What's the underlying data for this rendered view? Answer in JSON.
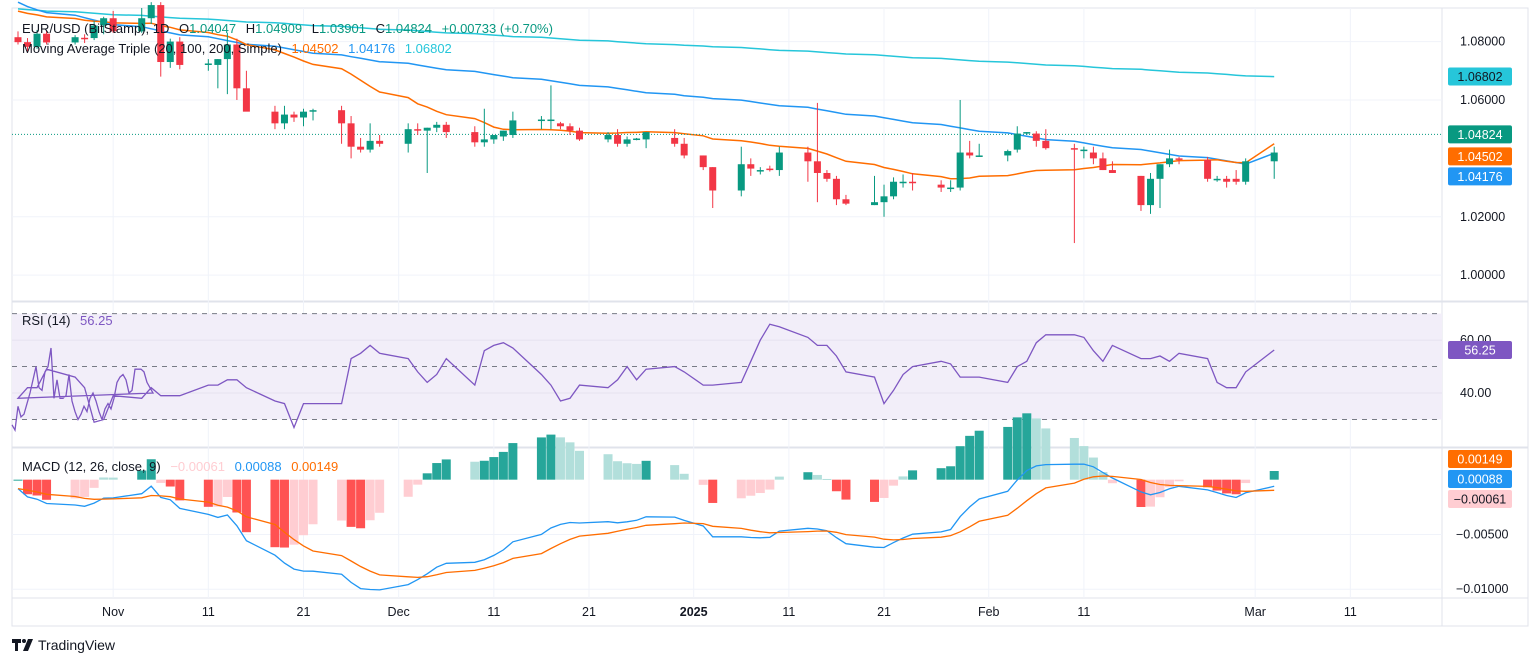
{
  "header": {
    "symbol": "EUR/USD (BitStamp), 1D",
    "open_label": "O",
    "open": "1.04047",
    "high_label": "H",
    "high": "1.04909",
    "low_label": "L",
    "low": "1.03901",
    "close_label": "C",
    "close": "1.04824",
    "change": "+0.00733 (+0.70%)",
    "ma_title": "Moving Average Triple (20, 100, 200, Simple)",
    "ma20": "1.04502",
    "ma100": "1.04176",
    "ma200": "1.06802"
  },
  "rsi_legend": {
    "title": "RSI (14)",
    "value": "56.25"
  },
  "macd_legend": {
    "title": "MACD (12, 26, close, 9)",
    "hist": "−0.00061",
    "macd": "0.00088",
    "signal": "0.00149"
  },
  "branding": {
    "name": "TradingView"
  },
  "colors": {
    "up": "#089981",
    "down": "#f23645",
    "ma20": "#ff6d00",
    "ma100": "#2196f3",
    "ma200": "#26c6da",
    "rsi": "#7e57c2",
    "rsi_band": "#f2eef9",
    "macd": "#2196f3",
    "signal": "#ff6d00",
    "hist_up_strong": "#26a69a",
    "hist_up_weak": "#b2dfdb",
    "hist_down_strong": "#ff5252",
    "hist_down_weak": "#ffcdd2"
  },
  "chart_data": [
    {
      "type": "candlestick",
      "title": "EUR/USD (BitStamp), 1D",
      "ylim": [
        0.9915,
        1.0915
      ],
      "yticks": [
        "1.08000",
        "1.06000",
        "1.02000",
        "1.00000"
      ],
      "ytick_values": [
        1.08,
        1.06,
        1.02,
        1.0
      ],
      "xticks": [
        "Nov",
        "11",
        "21",
        "Dec",
        "11",
        "21",
        "2025",
        "11",
        "21",
        "Feb",
        "11",
        "Mar",
        "11"
      ],
      "xtick_dates": [
        "2024-11-01",
        "2024-11-11",
        "2024-11-21",
        "2024-12-01",
        "2024-12-11",
        "2024-12-21",
        "2025-01-01",
        "2025-01-11",
        "2025-01-21",
        "2025-02-01",
        "2025-02-11",
        "2025-03-01",
        "2025-03-11"
      ],
      "x_start": "2024-10-22",
      "x_end": "2025-03-20",
      "last_price": "1.04824",
      "price_badges": [
        {
          "value": "1.06802",
          "series": "ma200"
        },
        {
          "value": "1.04824",
          "series": "last"
        },
        {
          "value": "1.04502",
          "series": "ma20"
        },
        {
          "value": "1.04176",
          "series": "ma100"
        }
      ],
      "candles": [
        {
          "d": "2024-10-22",
          "o": 1.0815,
          "h": 1.0835,
          "l": 1.079,
          "c": 1.0798
        },
        {
          "d": "2024-10-23",
          "o": 1.0798,
          "h": 1.0812,
          "l": 1.0765,
          "c": 1.0782
        },
        {
          "d": "2024-10-24",
          "o": 1.0782,
          "h": 1.084,
          "l": 1.0775,
          "c": 1.0827
        },
        {
          "d": "2024-10-25",
          "o": 1.0827,
          "h": 1.0837,
          "l": 1.079,
          "c": 1.0797
        },
        {
          "d": "2024-10-28",
          "o": 1.0797,
          "h": 1.0822,
          "l": 1.079,
          "c": 1.0815
        },
        {
          "d": "2024-10-29",
          "o": 1.0813,
          "h": 1.0825,
          "l": 1.0795,
          "c": 1.081
        },
        {
          "d": "2024-10-30",
          "o": 1.0812,
          "h": 1.087,
          "l": 1.0805,
          "c": 1.0855
        },
        {
          "d": "2024-10-31",
          "o": 1.0855,
          "h": 1.0885,
          "l": 1.0825,
          "c": 1.088
        },
        {
          "d": "2024-11-01",
          "o": 1.088,
          "h": 1.0905,
          "l": 1.083,
          "c": 1.0835
        },
        {
          "d": "2024-11-04",
          "o": 1.0835,
          "h": 1.0915,
          "l": 1.083,
          "c": 1.088
        },
        {
          "d": "2024-11-05",
          "o": 1.088,
          "h": 1.0935,
          "l": 1.086,
          "c": 1.0925
        },
        {
          "d": "2024-11-06",
          "o": 1.0925,
          "h": 1.0935,
          "l": 1.068,
          "c": 1.073
        },
        {
          "d": "2024-11-07",
          "o": 1.073,
          "h": 1.081,
          "l": 1.071,
          "c": 1.08
        },
        {
          "d": "2024-11-08",
          "o": 1.08,
          "h": 1.0815,
          "l": 1.0705,
          "c": 1.072
        },
        {
          "d": "2024-11-11",
          "o": 1.072,
          "h": 1.074,
          "l": 1.07,
          "c": 1.0725
        },
        {
          "d": "2024-11-12",
          "o": 1.072,
          "h": 1.074,
          "l": 1.064,
          "c": 1.074
        },
        {
          "d": "2024-11-13",
          "o": 1.074,
          "h": 1.083,
          "l": 1.062,
          "c": 1.079
        },
        {
          "d": "2024-11-14",
          "o": 1.079,
          "h": 1.081,
          "l": 1.06,
          "c": 1.064
        },
        {
          "d": "2024-11-15",
          "o": 1.064,
          "h": 1.07,
          "l": 1.06,
          "c": 1.056
        },
        {
          "d": "2024-11-18",
          "o": 1.056,
          "h": 1.058,
          "l": 1.05,
          "c": 1.052
        },
        {
          "d": "2024-11-19",
          "o": 1.052,
          "h": 1.058,
          "l": 1.05,
          "c": 1.055
        },
        {
          "d": "2024-11-20",
          "o": 1.055,
          "h": 1.056,
          "l": 1.0525,
          "c": 1.054
        },
        {
          "d": "2024-11-21",
          "o": 1.054,
          "h": 1.057,
          "l": 1.051,
          "c": 1.056
        },
        {
          "d": "2024-11-22",
          "o": 1.056,
          "h": 1.057,
          "l": 1.053,
          "c": 1.0565
        },
        {
          "d": "2024-11-25",
          "o": 1.0565,
          "h": 1.058,
          "l": 1.045,
          "c": 1.052
        },
        {
          "d": "2024-11-26",
          "o": 1.052,
          "h": 1.0545,
          "l": 1.04,
          "c": 1.044
        },
        {
          "d": "2024-11-27",
          "o": 1.044,
          "h": 1.047,
          "l": 1.042,
          "c": 1.043
        },
        {
          "d": "2024-11-28",
          "o": 1.043,
          "h": 1.052,
          "l": 1.042,
          "c": 1.046
        },
        {
          "d": "2024-11-29",
          "o": 1.046,
          "h": 1.048,
          "l": 1.044,
          "c": 1.045
        },
        {
          "d": "2024-12-02",
          "o": 1.045,
          "h": 1.052,
          "l": 1.042,
          "c": 1.05
        },
        {
          "d": "2024-12-03",
          "o": 1.05,
          "h": 1.052,
          "l": 1.048,
          "c": 1.0495
        },
        {
          "d": "2024-12-04",
          "o": 1.0495,
          "h": 1.0505,
          "l": 1.035,
          "c": 1.0505
        },
        {
          "d": "2024-12-05",
          "o": 1.0505,
          "h": 1.0525,
          "l": 1.049,
          "c": 1.0515
        },
        {
          "d": "2024-12-06",
          "o": 1.0515,
          "h": 1.0525,
          "l": 1.047,
          "c": 1.049
        },
        {
          "d": "2024-12-09",
          "o": 1.049,
          "h": 1.051,
          "l": 1.044,
          "c": 1.0455
        },
        {
          "d": "2024-12-10",
          "o": 1.0455,
          "h": 1.057,
          "l": 1.044,
          "c": 1.0465
        },
        {
          "d": "2024-12-11",
          "o": 1.0465,
          "h": 1.0475,
          "l": 1.045,
          "c": 1.048
        },
        {
          "d": "2024-12-12",
          "o": 1.0475,
          "h": 1.0495,
          "l": 1.046,
          "c": 1.0495
        },
        {
          "d": "2024-12-13",
          "o": 1.048,
          "h": 1.056,
          "l": 1.047,
          "c": 1.053
        },
        {
          "d": "2024-12-16",
          "o": 1.053,
          "h": 1.0545,
          "l": 1.05,
          "c": 1.0533
        },
        {
          "d": "2024-12-17",
          "o": 1.0533,
          "h": 1.065,
          "l": 1.05,
          "c": 1.0533
        },
        {
          "d": "2024-12-18",
          "o": 1.052,
          "h": 1.0525,
          "l": 1.05,
          "c": 1.051
        },
        {
          "d": "2024-12-19",
          "o": 1.051,
          "h": 1.052,
          "l": 1.048,
          "c": 1.0495
        },
        {
          "d": "2024-12-20",
          "o": 1.0495,
          "h": 1.0505,
          "l": 1.046,
          "c": 1.0465
        },
        {
          "d": "2024-12-23",
          "o": 1.0465,
          "h": 1.049,
          "l": 1.0455,
          "c": 1.048
        },
        {
          "d": "2024-12-24",
          "o": 1.048,
          "h": 1.05,
          "l": 1.044,
          "c": 1.045
        },
        {
          "d": "2024-12-25",
          "o": 1.045,
          "h": 1.0475,
          "l": 1.044,
          "c": 1.0465
        },
        {
          "d": "2024-12-26",
          "o": 1.0465,
          "h": 1.047,
          "l": 1.0462,
          "c": 1.0468
        },
        {
          "d": "2024-12-27",
          "o": 1.0465,
          "h": 1.047,
          "l": 1.0435,
          "c": 1.049
        },
        {
          "d": "2024-12-30",
          "o": 1.047,
          "h": 1.05,
          "l": 1.044,
          "c": 1.045
        },
        {
          "d": "2024-12-31",
          "o": 1.045,
          "h": 1.047,
          "l": 1.04,
          "c": 1.041
        },
        {
          "d": "2025-01-02",
          "o": 1.041,
          "h": 1.041,
          "l": 1.036,
          "c": 1.037
        },
        {
          "d": "2025-01-03",
          "o": 1.037,
          "h": 1.037,
          "l": 1.023,
          "c": 1.029
        },
        {
          "d": "2025-01-06",
          "o": 1.029,
          "h": 1.044,
          "l": 1.027,
          "c": 1.038
        },
        {
          "d": "2025-01-07",
          "o": 1.038,
          "h": 1.04,
          "l": 1.034,
          "c": 1.0365
        },
        {
          "d": "2025-01-08",
          "o": 1.036,
          "h": 1.037,
          "l": 1.0345,
          "c": 1.036
        },
        {
          "d": "2025-01-09",
          "o": 1.0365,
          "h": 1.0375,
          "l": 1.0355,
          "c": 1.036
        },
        {
          "d": "2025-01-10",
          "o": 1.036,
          "h": 1.044,
          "l": 1.034,
          "c": 1.042
        },
        {
          "d": "2025-01-13",
          "o": 1.042,
          "h": 1.044,
          "l": 1.032,
          "c": 1.039
        },
        {
          "d": "2025-01-14",
          "o": 1.039,
          "h": 1.059,
          "l": 1.025,
          "c": 1.035
        },
        {
          "d": "2025-01-15",
          "o": 1.035,
          "h": 1.036,
          "l": 1.032,
          "c": 1.033
        },
        {
          "d": "2025-01-16",
          "o": 1.033,
          "h": 1.034,
          "l": 1.024,
          "c": 1.026
        },
        {
          "d": "2025-01-17",
          "o": 1.026,
          "h": 1.0275,
          "l": 1.024,
          "c": 1.0245
        },
        {
          "d": "2025-01-20",
          "o": 1.024,
          "h": 1.034,
          "l": 1.024,
          "c": 1.025
        },
        {
          "d": "2025-01-21",
          "o": 1.025,
          "h": 1.031,
          "l": 1.02,
          "c": 1.027
        },
        {
          "d": "2025-01-22",
          "o": 1.027,
          "h": 1.0335,
          "l": 1.026,
          "c": 1.032
        },
        {
          "d": "2025-01-23",
          "o": 1.032,
          "h": 1.0345,
          "l": 1.03,
          "c": 1.032
        },
        {
          "d": "2025-01-24",
          "o": 1.032,
          "h": 1.035,
          "l": 1.029,
          "c": 1.0315
        },
        {
          "d": "2025-01-27",
          "o": 1.031,
          "h": 1.0325,
          "l": 1.0285,
          "c": 1.03
        },
        {
          "d": "2025-01-28",
          "o": 1.03,
          "h": 1.0325,
          "l": 1.0285,
          "c": 1.03
        },
        {
          "d": "2025-01-29",
          "o": 1.03,
          "h": 1.06,
          "l": 1.029,
          "c": 1.042
        },
        {
          "d": "2025-01-30",
          "o": 1.042,
          "h": 1.046,
          "l": 1.04,
          "c": 1.041
        },
        {
          "d": "2025-01-31",
          "o": 1.041,
          "h": 1.045,
          "l": 1.0405,
          "c": 1.041
        },
        {
          "d": "2025-02-03",
          "o": 1.041,
          "h": 1.043,
          "l": 1.039,
          "c": 1.0425
        },
        {
          "d": "2025-02-04",
          "o": 1.043,
          "h": 1.051,
          "l": 1.042,
          "c": 1.0485
        },
        {
          "d": "2025-02-05",
          "o": 1.0485,
          "h": 1.049,
          "l": 1.048,
          "c": 1.049
        },
        {
          "d": "2025-02-06",
          "o": 1.0485,
          "h": 1.0493,
          "l": 1.044,
          "c": 1.046
        },
        {
          "d": "2025-02-07",
          "o": 1.046,
          "h": 1.05,
          "l": 1.043,
          "c": 1.0435
        },
        {
          "d": "2025-02-10",
          "o": 1.0435,
          "h": 1.045,
          "l": 1.011,
          "c": 1.043
        },
        {
          "d": "2025-02-11",
          "o": 1.043,
          "h": 1.044,
          "l": 1.04,
          "c": 1.043
        },
        {
          "d": "2025-02-12",
          "o": 1.042,
          "h": 1.044,
          "l": 1.038,
          "c": 1.04
        },
        {
          "d": "2025-02-13",
          "o": 1.04,
          "h": 1.042,
          "l": 1.036,
          "c": 1.036
        },
        {
          "d": "2025-02-14",
          "o": 1.036,
          "h": 1.039,
          "l": 1.035,
          "c": 1.035
        },
        {
          "d": "2025-02-17",
          "o": 1.034,
          "h": 1.034,
          "l": 1.022,
          "c": 1.024
        },
        {
          "d": "2025-02-18",
          "o": 1.024,
          "h": 1.035,
          "l": 1.021,
          "c": 1.033
        },
        {
          "d": "2025-02-19",
          "o": 1.033,
          "h": 1.038,
          "l": 1.023,
          "c": 1.038
        },
        {
          "d": "2025-02-20",
          "o": 1.038,
          "h": 1.043,
          "l": 1.037,
          "c": 1.04
        },
        {
          "d": "2025-02-21",
          "o": 1.04,
          "h": 1.0405,
          "l": 1.038,
          "c": 1.0395
        },
        {
          "d": "2025-02-24",
          "o": 1.0395,
          "h": 1.0405,
          "l": 1.032,
          "c": 1.033
        },
        {
          "d": "2025-02-25",
          "o": 1.033,
          "h": 1.034,
          "l": 1.032,
          "c": 1.033
        },
        {
          "d": "2025-02-26",
          "o": 1.033,
          "h": 1.034,
          "l": 1.03,
          "c": 1.032
        },
        {
          "d": "2025-02-27",
          "o": 1.033,
          "h": 1.036,
          "l": 1.031,
          "c": 1.032
        },
        {
          "d": "2025-02-28",
          "o": 1.032,
          "h": 1.04,
          "l": 1.031,
          "c": 1.039
        },
        {
          "d": "2025-03-03",
          "o": 1.039,
          "h": 1.044,
          "l": 1.033,
          "c": 1.042
        }
      ],
      "ma20": [],
      "ma100": [],
      "ma200": []
    },
    {
      "type": "line",
      "title": "RSI (14)",
      "last_value": 56.25,
      "ylim": [
        20,
        74
      ],
      "yticks": [
        "60.00",
        "40.00"
      ],
      "ytick_values": [
        60,
        40
      ],
      "band": [
        30,
        70
      ],
      "midline": 50,
      "values": [
        28,
        26,
        35,
        31,
        32,
        36,
        40,
        45,
        50,
        42,
        41,
        48,
        50,
        57,
        38,
        45,
        38,
        38,
        39,
        47,
        37,
        33,
        30,
        32,
        35,
        33,
        38,
        40,
        37,
        33,
        30,
        34,
        36,
        34,
        38,
        44,
        46,
        47,
        45,
        40,
        41,
        49,
        49,
        49,
        48,
        44,
        42,
        40,
        38,
        42,
        42,
        49,
        46,
        42,
        29,
        30,
        39,
        38,
        42,
        39,
        39,
        39,
        43,
        43,
        45,
        45,
        42,
        37,
        36,
        27,
        36,
        36,
        36,
        53,
        55,
        58,
        55,
        53,
        48,
        44,
        47,
        53,
        43,
        56,
        58,
        59,
        57,
        47,
        43,
        37,
        38,
        43,
        42,
        45,
        50,
        45,
        49,
        50,
        48,
        43,
        43,
        44,
        52,
        60,
        66,
        65,
        61,
        58,
        58,
        54,
        48,
        46,
        36,
        41,
        47,
        50,
        52,
        51,
        46,
        46,
        46,
        44,
        50,
        52,
        59,
        62,
        62,
        61,
        56,
        52,
        58,
        53,
        53,
        54,
        52,
        55,
        53,
        44,
        42,
        42,
        48,
        56.25
      ]
    },
    {
      "type": "macd",
      "title": "MACD (12, 26, close, 9)",
      "ylim": [
        -0.0108,
        0.0028
      ],
      "yticks": [
        "−0.00500",
        "−0.01000"
      ],
      "ytick_values": [
        -0.005,
        -0.01
      ],
      "histogram_last": -0.00061,
      "macd_last": 0.00088,
      "signal_last": 0.00149
    }
  ]
}
